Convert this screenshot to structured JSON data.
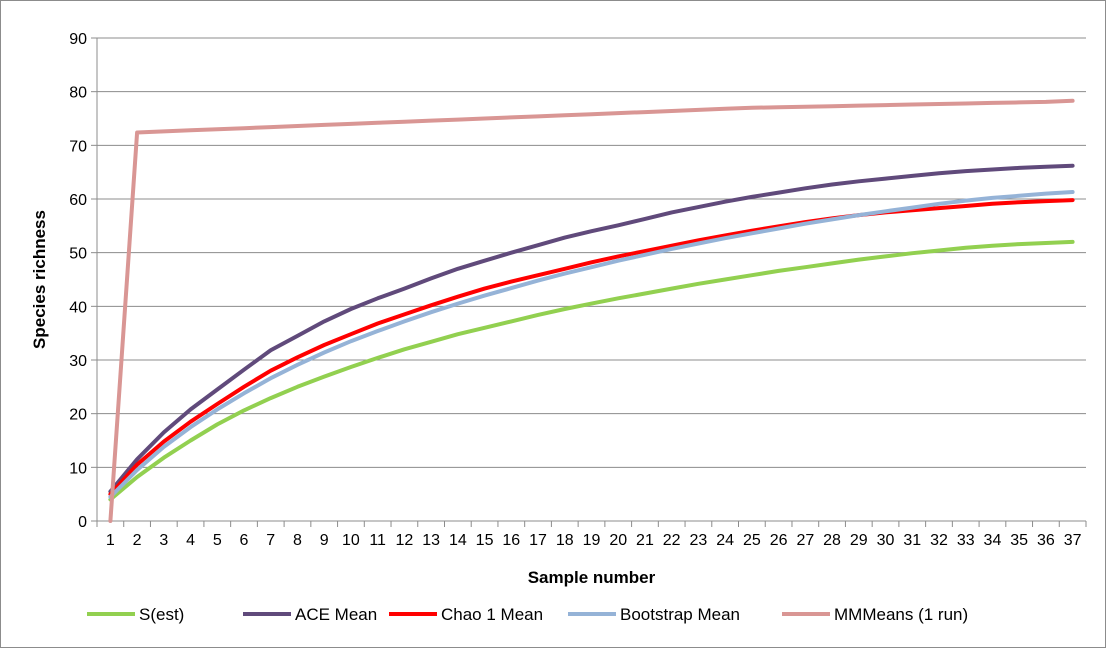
{
  "chart_data": {
    "type": "line",
    "title": "",
    "xlabel": "Sample number",
    "ylabel": "Species richness",
    "ylim": [
      0,
      90
    ],
    "yticks": [
      0,
      10,
      20,
      30,
      40,
      50,
      60,
      70,
      80,
      90
    ],
    "grid": "horizontal",
    "legend_position": "bottom",
    "x": [
      1,
      2,
      3,
      4,
      5,
      6,
      7,
      8,
      9,
      10,
      11,
      12,
      13,
      14,
      15,
      16,
      17,
      18,
      19,
      20,
      21,
      22,
      23,
      24,
      25,
      26,
      27,
      28,
      29,
      30,
      31,
      32,
      33,
      34,
      35,
      36,
      37
    ],
    "series": [
      {
        "name": "S(est)",
        "color": "#92d050",
        "values": [
          4,
          8.2,
          11.8,
          15,
          18,
          20.6,
          22.9,
          25,
          26.9,
          28.7,
          30.4,
          32,
          33.4,
          34.8,
          36,
          37.2,
          38.4,
          39.5,
          40.5,
          41.5,
          42.4,
          43.3,
          44.2,
          45,
          45.8,
          46.6,
          47.3,
          48,
          48.7,
          49.3,
          49.9,
          50.4,
          50.9,
          51.3,
          51.6,
          51.8,
          52
        ]
      },
      {
        "name": "ACE Mean",
        "color": "#604a7b",
        "values": [
          5.5,
          11.5,
          16.5,
          20.8,
          24.5,
          28.2,
          31.8,
          34.5,
          37.2,
          39.5,
          41.5,
          43.3,
          45.2,
          47,
          48.5,
          50,
          51.4,
          52.8,
          54,
          55.1,
          56.3,
          57.5,
          58.5,
          59.5,
          60.4,
          61.2,
          62,
          62.7,
          63.3,
          63.8,
          64.3,
          64.8,
          65.2,
          65.5,
          65.8,
          66,
          66.2
        ]
      },
      {
        "name": "Chao 1 Mean",
        "color": "#ff0000",
        "values": [
          5,
          10.5,
          14.8,
          18.5,
          21.8,
          25,
          28,
          30.5,
          32.8,
          34.8,
          36.8,
          38.5,
          40.2,
          41.8,
          43.3,
          44.6,
          45.8,
          47,
          48.2,
          49.3,
          50.3,
          51.3,
          52.3,
          53.2,
          54.1,
          54.9,
          55.7,
          56.4,
          57,
          57.5,
          57.9,
          58.3,
          58.7,
          59.1,
          59.4,
          59.6,
          59.8
        ]
      },
      {
        "name": "Bootstrap Mean",
        "color": "#95b3d7",
        "values": [
          4.5,
          9.5,
          13.8,
          17.5,
          20.8,
          23.8,
          26.6,
          29.1,
          31.4,
          33.5,
          35.4,
          37.2,
          38.9,
          40.5,
          42,
          43.4,
          44.8,
          46.1,
          47.3,
          48.5,
          49.6,
          50.7,
          51.7,
          52.7,
          53.6,
          54.5,
          55.4,
          56.2,
          57,
          57.7,
          58.4,
          59.1,
          59.7,
          60.2,
          60.6,
          61,
          61.3
        ]
      },
      {
        "name": "MMMeans (1 run)",
        "color": "#d99694",
        "values": [
          0,
          72.4,
          72.6,
          72.8,
          73,
          73.2,
          73.4,
          73.6,
          73.8,
          74,
          74.2,
          74.4,
          74.6,
          74.8,
          75,
          75.2,
          75.4,
          75.6,
          75.8,
          76,
          76.2,
          76.4,
          76.6,
          76.8,
          77,
          77.1,
          77.2,
          77.3,
          77.4,
          77.5,
          77.6,
          77.7,
          77.8,
          77.9,
          78,
          78.1,
          78.3
        ]
      }
    ]
  }
}
